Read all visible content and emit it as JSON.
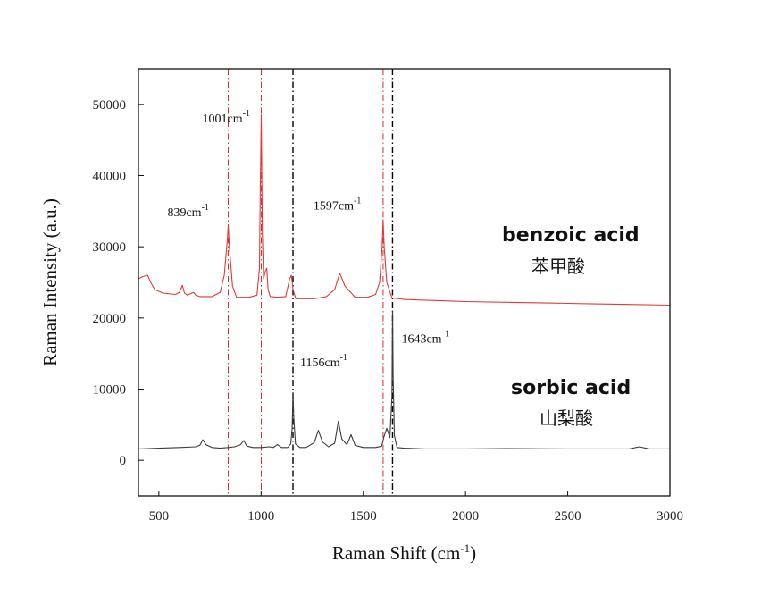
{
  "chart_data": {
    "type": "line",
    "title": "",
    "xlabel": "Raman Shift (cm",
    "xlabel_sup": "-1",
    "xlabel_end": ")",
    "ylabel": "Raman Intensity (a.u.)",
    "xlim": [
      400,
      3000
    ],
    "ylim": [
      -5000,
      55000
    ],
    "xticks": [
      500,
      1000,
      1500,
      2000,
      2500,
      3000
    ],
    "yticks": [
      0,
      10000,
      20000,
      30000,
      40000,
      50000
    ],
    "grid": false,
    "colors": {
      "benzoic": "#e03a3a",
      "sorbic": "#3a3a3a",
      "red_ref": "#d42b2b",
      "black_ref": "#000000"
    },
    "series": [
      {
        "id": "benzoic",
        "name": "benzoic acid",
        "name_zh": "苯甲酸",
        "x": [
          400,
          420,
          445,
          460,
          480,
          520,
          580,
          600,
          615,
          625,
          640,
          670,
          680,
          700,
          760,
          800,
          820,
          835,
          839,
          845,
          860,
          880,
          940,
          980,
          992,
          996,
          1001,
          1006,
          1012,
          1020,
          1028,
          1034,
          1045,
          1080,
          1120,
          1140,
          1148,
          1156,
          1170,
          1200,
          1260,
          1320,
          1360,
          1385,
          1410,
          1460,
          1520,
          1560,
          1580,
          1592,
          1597,
          1602,
          1615,
          1640,
          1700,
          1800,
          1900,
          2000,
          2200,
          2400,
          2600,
          2800,
          3000
        ],
        "y": [
          25500,
          25800,
          26000,
          25000,
          24000,
          23500,
          23300,
          23600,
          24600,
          23500,
          23200,
          23600,
          23200,
          23000,
          23000,
          23600,
          26000,
          31000,
          33000,
          30000,
          24500,
          22900,
          22900,
          23200,
          27000,
          38000,
          48500,
          32000,
          25500,
          26500,
          27000,
          24000,
          23000,
          22900,
          23000,
          25500,
          26000,
          24000,
          22700,
          22700,
          22700,
          23000,
          24000,
          26300,
          24500,
          22900,
          22900,
          23300,
          25000,
          30000,
          33800,
          30000,
          25000,
          22800,
          22600,
          22500,
          22400,
          22300,
          22200,
          22100,
          22000,
          21900,
          21800
        ]
      },
      {
        "id": "sorbic",
        "name": "sorbic acid",
        "name_zh": "山梨酸",
        "x": [
          400,
          450,
          500,
          600,
          680,
          700,
          715,
          730,
          760,
          800,
          840,
          870,
          900,
          915,
          930,
          960,
          1000,
          1040,
          1060,
          1080,
          1100,
          1130,
          1145,
          1152,
          1156,
          1160,
          1168,
          1190,
          1220,
          1260,
          1280,
          1300,
          1330,
          1360,
          1378,
          1395,
          1420,
          1440,
          1460,
          1500,
          1560,
          1590,
          1600,
          1615,
          1630,
          1640,
          1643,
          1646,
          1652,
          1665,
          1700,
          1800,
          2000,
          2200,
          2500,
          2800,
          2850,
          2900,
          3000
        ],
        "y": [
          1600,
          1650,
          1700,
          1800,
          1900,
          2100,
          2900,
          2200,
          1800,
          1700,
          1800,
          1900,
          2200,
          2800,
          2000,
          1800,
          1800,
          1900,
          1800,
          2200,
          1800,
          1800,
          2300,
          4500,
          9500,
          6000,
          2300,
          1800,
          1800,
          2500,
          4200,
          2600,
          1900,
          2400,
          5500,
          3000,
          2200,
          3600,
          2100,
          1800,
          1800,
          2000,
          3200,
          4500,
          3200,
          9000,
          21000,
          12000,
          3500,
          1800,
          1700,
          1600,
          1600,
          1650,
          1600,
          1600,
          1900,
          1600,
          1600
        ]
      }
    ],
    "reference_lines": [
      {
        "x": 839,
        "style": "red"
      },
      {
        "x": 1001,
        "style": "red"
      },
      {
        "x": 1156,
        "style": "black"
      },
      {
        "x": 1597,
        "style": "red"
      },
      {
        "x": 1643,
        "style": "black"
      }
    ],
    "annotations": [
      {
        "id": "ann-1001",
        "text": "1001cm",
        "sup": "-1",
        "x": 1001,
        "y": 47500
      },
      {
        "id": "ann-839",
        "text": "839cm",
        "sup": "-1",
        "x": 839,
        "y": 34300
      },
      {
        "id": "ann-1597",
        "text": "1597cm",
        "sup": "-1",
        "x": 1597,
        "y": 35200
      },
      {
        "id": "ann-1156",
        "text": "1156cm",
        "sup": "-1",
        "x": 1156,
        "y": 13200
      },
      {
        "id": "ann-1643",
        "text": "1643cm ",
        "sup": "1",
        "x": 1643,
        "y": 16500
      }
    ]
  }
}
